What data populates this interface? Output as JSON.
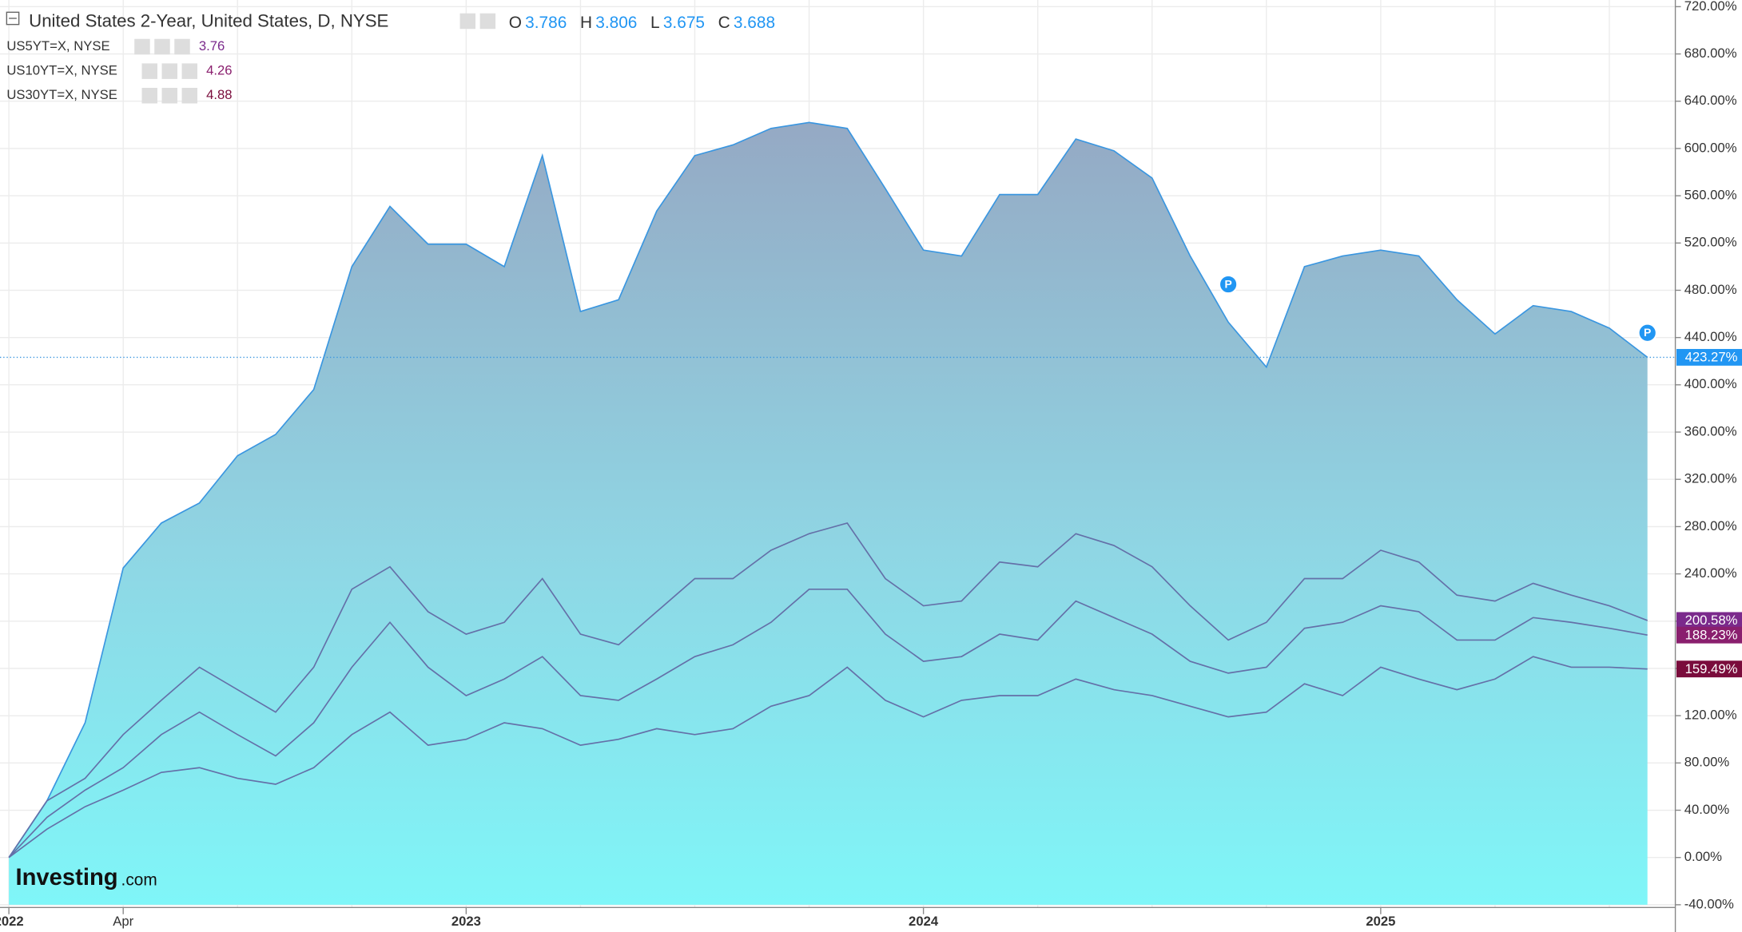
{
  "chart_data": {
    "type": "area",
    "title": "United States 2-Year, United States, D, NYSE",
    "ohlc": [
      {
        "label": "O",
        "value": 3.786
      },
      {
        "label": "H",
        "value": 3.806
      },
      {
        "label": "L",
        "value": 3.675
      },
      {
        "label": "C",
        "value": 3.688
      }
    ],
    "logo": [
      "Investing",
      ".com"
    ],
    "categories": [
      "2022",
      null,
      null,
      "Apr",
      null,
      null,
      null,
      null,
      null,
      null,
      null,
      null,
      "2023",
      null,
      null,
      null,
      null,
      null,
      null,
      null,
      null,
      null,
      null,
      null,
      "2024",
      null,
      null,
      null,
      null,
      null,
      null,
      null,
      null,
      null,
      null,
      null,
      "2025",
      null,
      null,
      null,
      null,
      null,
      null,
      null
    ],
    "series": [
      {
        "name": "United States 2-Year, United States, D, NYSE",
        "color": "#3a96e0",
        "last_label": "423.27%",
        "values": [
          0,
          48,
          114,
          245,
          283,
          300,
          340,
          358,
          396,
          500,
          551,
          519,
          519,
          500,
          594,
          462,
          472,
          547,
          594,
          603,
          617,
          622,
          617,
          566,
          514,
          509,
          561,
          561,
          608,
          598,
          575,
          509,
          453,
          415,
          500,
          509,
          514,
          509,
          472,
          443,
          467,
          462,
          448,
          423.27
        ]
      },
      {
        "name": "US5YT=X, NYSE",
        "quote": 3.76,
        "color": "#7b2a8c",
        "last_label": "200.58%",
        "values": [
          0,
          48,
          67,
          104,
          133,
          161,
          142,
          123,
          161,
          227,
          246,
          208,
          189,
          199,
          236,
          189,
          180,
          208,
          236,
          236,
          260,
          274,
          283,
          236,
          213,
          217,
          250,
          246,
          274,
          264,
          246,
          213,
          184,
          199,
          236,
          236,
          260,
          250,
          222,
          217,
          232,
          222,
          213,
          200.58
        ]
      },
      {
        "name": "US10YT=X, NYSE",
        "quote": 4.26,
        "color": "#8a1f6e",
        "last_label": "188.23%",
        "values": [
          0,
          34,
          57,
          76,
          104,
          123,
          104,
          86,
          114,
          161,
          199,
          161,
          137,
          151,
          170,
          137,
          133,
          151,
          170,
          180,
          199,
          227,
          227,
          189,
          166,
          170,
          189,
          184,
          217,
          203,
          189,
          166,
          156,
          161,
          194,
          199,
          213,
          208,
          184,
          184,
          203,
          199,
          194,
          188.23
        ]
      },
      {
        "name": "US30YT=X, NYSE",
        "quote": 4.88,
        "color": "#7a0c3c",
        "last_label": "159.49%",
        "values": [
          0,
          24,
          43,
          57,
          72,
          76,
          67,
          62,
          76,
          104,
          123,
          95,
          100,
          114,
          109,
          95,
          100,
          109,
          104,
          109,
          128,
          137,
          161,
          133,
          119,
          133,
          137,
          137,
          151,
          142,
          137,
          128,
          119,
          123,
          147,
          137,
          161,
          151,
          142,
          151,
          170,
          161,
          161,
          159.49
        ]
      }
    ],
    "annotations": [
      {
        "text": "P",
        "at": 32
      },
      {
        "text": "P",
        "at": 43
      }
    ],
    "ylim": [
      -40,
      720
    ],
    "yticks": [
      {
        "value": -40,
        "label": "-40.00%"
      },
      {
        "value": 0,
        "label": "0.00%"
      },
      {
        "value": 40,
        "label": "40.00%"
      },
      {
        "value": 80,
        "label": "80.00%"
      },
      {
        "value": 120,
        "label": "120.00%"
      },
      {
        "value": 160,
        "label": "160.00%"
      },
      {
        "value": 200,
        "label": "200.00%"
      },
      {
        "value": 240,
        "label": "240.00%"
      },
      {
        "value": 280,
        "label": "280.00%"
      },
      {
        "value": 320,
        "label": "320.00%"
      },
      {
        "value": 360,
        "label": "360.00%"
      },
      {
        "value": 400,
        "label": "400.00%"
      },
      {
        "value": 440,
        "label": "440.00%"
      },
      {
        "value": 480,
        "label": "480.00%"
      },
      {
        "value": 520,
        "label": "520.00%"
      },
      {
        "value": 560,
        "label": "560.00%"
      },
      {
        "value": 600,
        "label": "600.00%"
      },
      {
        "value": 640,
        "label": "640.00%"
      },
      {
        "value": 680,
        "label": "680.00%"
      },
      {
        "value": 720,
        "label": "720.00%"
      }
    ],
    "grid": true
  }
}
